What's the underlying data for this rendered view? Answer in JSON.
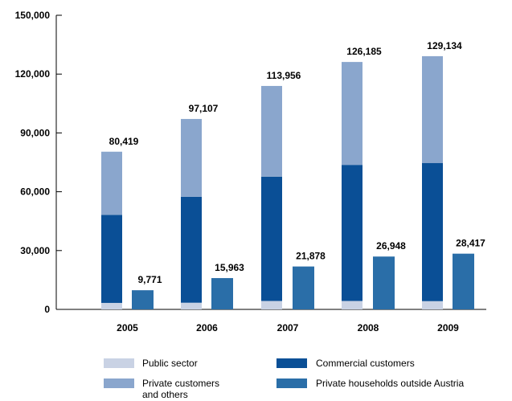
{
  "chart_data": {
    "type": "bar",
    "title": "",
    "xlabel": "",
    "ylabel": "",
    "ylim": [
      0,
      150000
    ],
    "yticks": [
      0,
      30000,
      60000,
      90000,
      120000,
      150000
    ],
    "ytick_labels": [
      "0",
      "30,000",
      "60,000",
      "90,000",
      "120,000",
      "150,000"
    ],
    "grid": false,
    "legend_position": "bottom",
    "categories": [
      "2005",
      "2006",
      "2007",
      "2008",
      "2009"
    ],
    "series": [
      {
        "name": "Public sector",
        "stack": "Austria",
        "color": "#c9d2e4",
        "values": [
          3300,
          3400,
          4300,
          4300,
          4200
        ]
      },
      {
        "name": "Commercial customers",
        "stack": "Austria",
        "color": "#0a4f96",
        "values": [
          44900,
          54000,
          63400,
          69400,
          70500
        ]
      },
      {
        "name": "Private customers and others",
        "stack": "Austria",
        "color": "#8aa6cd",
        "values": [
          32219,
          39707,
          46256,
          52485,
          54434
        ]
      },
      {
        "name": "Private households outside Austria",
        "stack": "Outside",
        "color": "#2a6ea8",
        "values": [
          9771,
          15963,
          21878,
          26948,
          28417
        ]
      }
    ],
    "stack_totals": [
      80419,
      97107,
      113956,
      126185,
      129134
    ],
    "stack_total_labels": [
      "80,419",
      "97,107",
      "113,956",
      "126,185",
      "129,134"
    ],
    "outside_labels": [
      "9,771",
      "15,963",
      "21,878",
      "26,948",
      "28,417"
    ]
  },
  "legend": [
    {
      "label_lines": [
        "Public sector"
      ],
      "color": "#c9d2e4"
    },
    {
      "label_lines": [
        "Commercial customers"
      ],
      "color": "#0a4f96"
    },
    {
      "label_lines": [
        "Private customers",
        "and others"
      ],
      "color": "#8aa6cd"
    },
    {
      "label_lines": [
        "Private households outside Austria"
      ],
      "color": "#2a6ea8"
    }
  ]
}
